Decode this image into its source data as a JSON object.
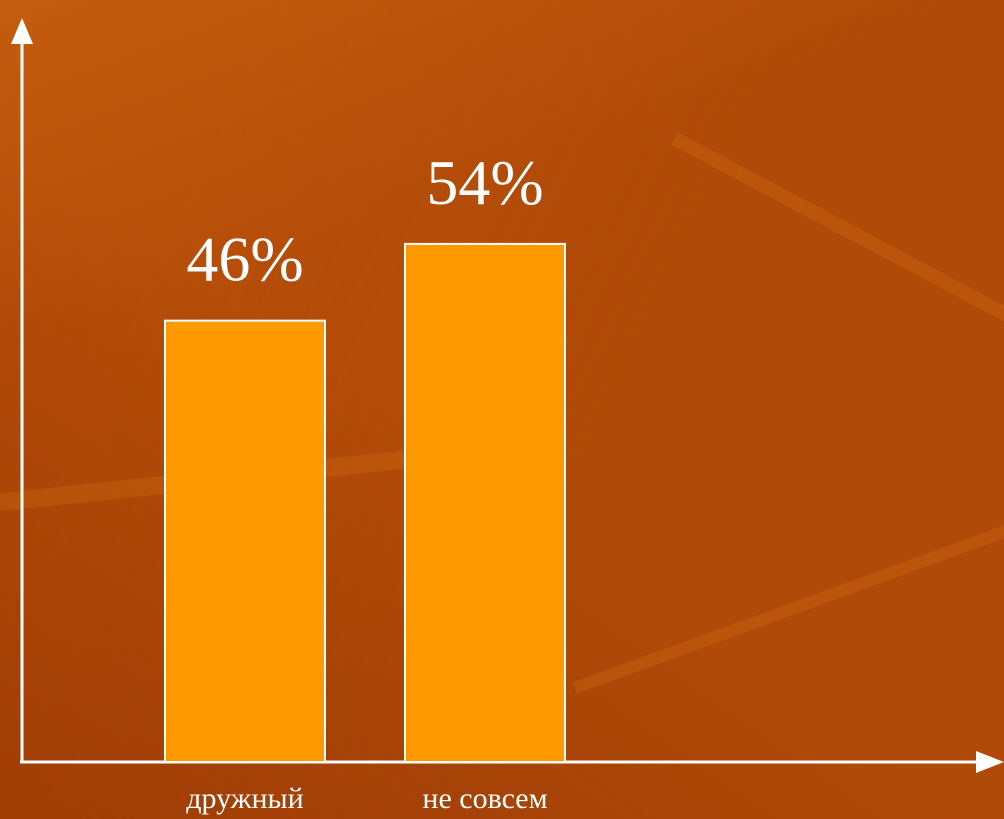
{
  "chart_data": {
    "type": "bar",
    "categories": [
      "дружный",
      "не совсем"
    ],
    "values": [
      46,
      54
    ],
    "value_labels": [
      "46%",
      "54%"
    ],
    "ylim": [
      0,
      69
    ],
    "grid": false,
    "legend": "none",
    "colors": {
      "bar_fill": "#ff9900",
      "bar_stroke": "#ffffff",
      "axis": "#ffffff",
      "text": "#ffffff"
    }
  }
}
